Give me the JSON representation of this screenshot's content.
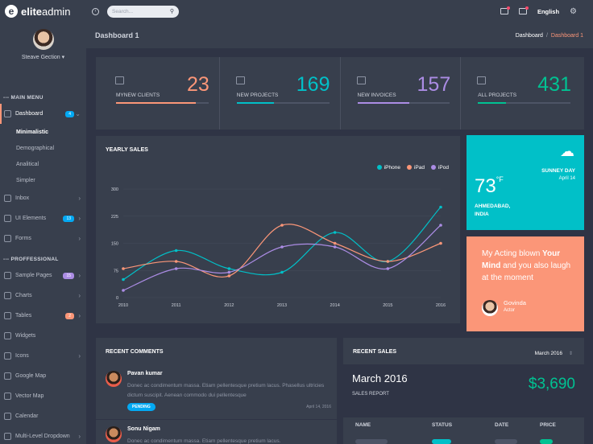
{
  "brand": {
    "bold": "elite",
    "light": "admin"
  },
  "user": {
    "name": "Steave Gection"
  },
  "sidebar": {
    "main_menu": "--- MAIN MENU",
    "dashboard": {
      "label": "Dashboard",
      "badge": "4",
      "badge_color": "#03a9f3"
    },
    "sub_items": [
      "Minimalistic",
      "Demographical",
      "Analitical",
      "Simpler"
    ],
    "items_a": [
      {
        "label": "Inbox",
        "icon": "inbox-icon"
      },
      {
        "label": "UI Elements",
        "icon": "grid-icon",
        "badge": "13",
        "badge_color": "#03a9f3"
      },
      {
        "label": "Forms",
        "icon": "forms-icon"
      }
    ],
    "professional": "--- PROFFESSIONAL",
    "items_b": [
      {
        "label": "Sample Pages",
        "icon": "pages-icon",
        "badge": "15",
        "badge_color": "#ab8ce4"
      },
      {
        "label": "Charts",
        "icon": "chart-icon"
      },
      {
        "label": "Tables",
        "icon": "table-icon",
        "badge": "2",
        "badge_color": "#fb9678"
      },
      {
        "label": "Widgets",
        "icon": "widget-icon"
      },
      {
        "label": "Icons",
        "icon": "icons-icon"
      },
      {
        "label": "Google Map",
        "icon": "pin-icon"
      },
      {
        "label": "Vector Map",
        "icon": "map-icon"
      },
      {
        "label": "Calendar",
        "icon": "calendar-icon"
      },
      {
        "label": "Multi-Level Dropdown",
        "icon": "layers-icon"
      }
    ]
  },
  "topbar": {
    "search_placeholder": "Search...",
    "language": "English"
  },
  "page": {
    "title": "Dashboard 1",
    "crumb_root": "Dashboard",
    "crumb_sep": "/",
    "crumb_current": "Dashboard 1"
  },
  "stats": [
    {
      "label": "MYNEW CLIENTS",
      "value": "23",
      "color": "#fb9678",
      "progress": 0.86
    },
    {
      "label": "NEW PROJECTS",
      "value": "169",
      "color": "#01c0c8",
      "progress": 0.4
    },
    {
      "label": "NEW INVOICES",
      "value": "157",
      "color": "#ab8ce4",
      "progress": 0.56
    },
    {
      "label": "ALL PROJECTS",
      "value": "431",
      "color": "#00c292",
      "progress": 0.3
    }
  ],
  "chart_title": "YEARLY SALES",
  "chart_data": {
    "type": "line",
    "x": [
      "2010",
      "2011",
      "2012",
      "2013",
      "2014",
      "2015",
      "2016"
    ],
    "ylim": [
      0,
      300
    ],
    "yticks": [
      0,
      75,
      150,
      225,
      300
    ],
    "grid": true,
    "legend_position": "top-right",
    "series": [
      {
        "name": "iPhone",
        "color": "#01c0c8",
        "values": [
          50,
          130,
          80,
          70,
          180,
          100,
          250
        ]
      },
      {
        "name": "iPad",
        "color": "#fb9678",
        "values": [
          80,
          100,
          60,
          200,
          150,
          100,
          150
        ]
      },
      {
        "name": "iPod",
        "color": "#ab8ce4",
        "values": [
          20,
          80,
          70,
          140,
          140,
          80,
          200
        ]
      }
    ]
  },
  "weather": {
    "temp": "73",
    "unit": "°F",
    "day": "SUNNEY DAY",
    "date": "April 14",
    "location_1": "AHMEDABAD,",
    "location_2": "INDIA",
    "icon": "cloud-sun-icon"
  },
  "quote": {
    "pre": "My Acting blown ",
    "bold1": "Your",
    "bold2": "Mind",
    "post": " and you also laugh at the moment",
    "name": "Govinda",
    "role": "Actor"
  },
  "comments": {
    "title": "RECENT COMMENTS",
    "items": [
      {
        "name": "Pavan kumar",
        "text": "Donec ac condimentum massa. Etiam pellentesque pretium lacus. Phasellus ultricies dictum suscipit. Aenean commodo dui pellentesque",
        "status": "PENDING",
        "date": "April 14, 2016"
      },
      {
        "name": "Sonu Nigam",
        "text": "Donec ac condimentum massa. Etiam pellentesque pretium lacus."
      }
    ]
  },
  "sales": {
    "title": "RECENT SALES",
    "month_select": "March 2016",
    "month": "March 2016",
    "report_label": "SALES REPORT",
    "amount": "$3,690",
    "headers": [
      "NAME",
      "STATUS",
      "DATE",
      "PRICE"
    ]
  }
}
